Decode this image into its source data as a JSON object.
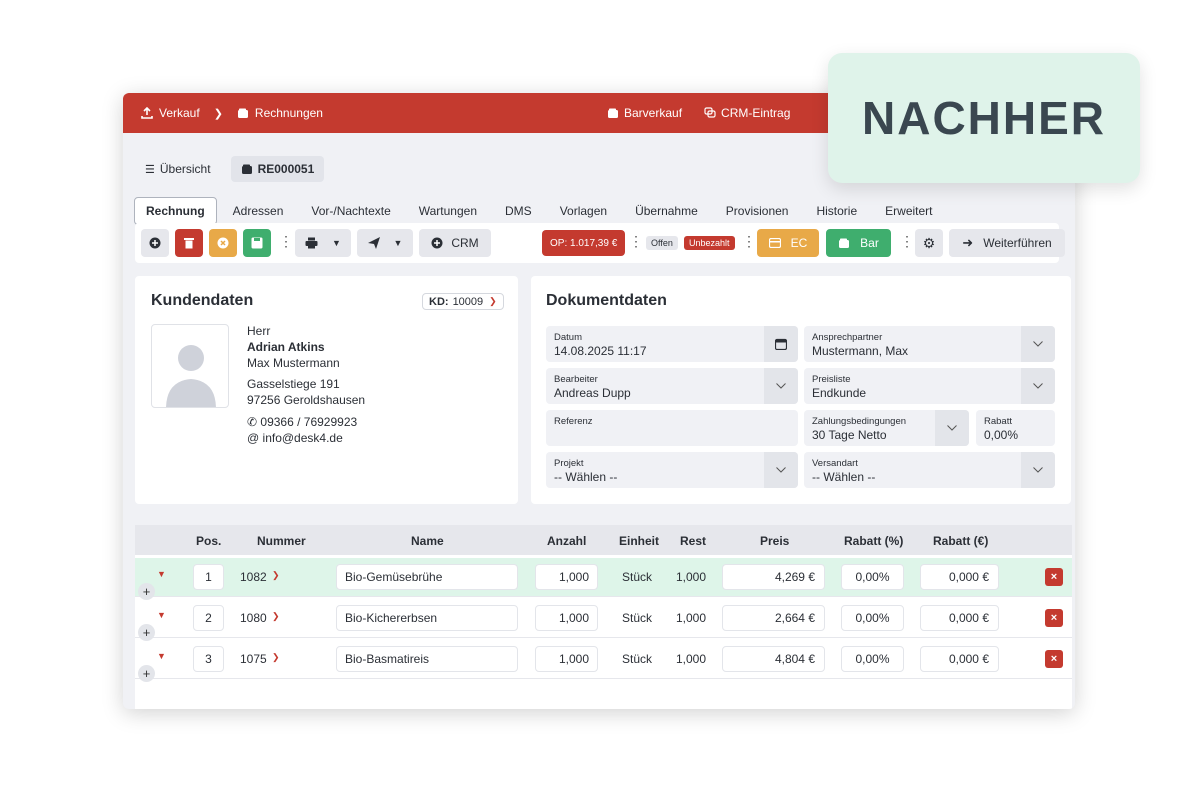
{
  "topbar": {
    "crumb1": "Verkauf",
    "crumb2": "Rechnungen",
    "barverkauf": "Barverkauf",
    "crm_eintrag": "CRM-Eintrag"
  },
  "subtabs": {
    "overview": "Übersicht",
    "document": "RE000051"
  },
  "tabs": [
    "Rechnung",
    "Adressen",
    "Vor-/Nachtexte",
    "Wartungen",
    "DMS",
    "Vorlagen",
    "Übernahme",
    "Provisionen",
    "Historie",
    "Erweitert"
  ],
  "toolbar": {
    "crm": "CRM",
    "op": "OP: 1.017,39 €",
    "offen": "Offen",
    "unbezahlt": "Unbezahlt",
    "ec": "EC",
    "bar": "Bar",
    "weiter": "Weiterführen"
  },
  "customer": {
    "title": "Kundendaten",
    "kd_label": "KD:",
    "kd_value": "10009",
    "salutation": "Herr",
    "name": "Adrian Atkins",
    "contact": "Max Mustermann",
    "street": "Gasselstiege 191",
    "city": "97256 Geroldshausen",
    "phone": "09366 / 76929923",
    "email": "info@desk4.de"
  },
  "document": {
    "title": "Dokumentdaten",
    "datum_label": "Datum",
    "datum": "14.08.2025 11:17",
    "ansprech_label": "Ansprechpartner",
    "ansprech": "Mustermann, Max",
    "bearbeiter_label": "Bearbeiter",
    "bearbeiter": "Andreas Dupp",
    "preisliste_label": "Preisliste",
    "preisliste": "Endkunde",
    "referenz_label": "Referenz",
    "zahlung_label": "Zahlungsbedingungen",
    "zahlung": "30 Tage Netto",
    "rabatt_label": "Rabatt",
    "rabatt": "0,00%",
    "projekt_label": "Projekt",
    "projekt": "-- Wählen --",
    "versand_label": "Versandart",
    "versand": "-- Wählen --"
  },
  "table": {
    "headers": {
      "pos": "Pos.",
      "nummer": "Nummer",
      "name": "Name",
      "anzahl": "Anzahl",
      "einheit": "Einheit",
      "rest": "Rest",
      "preis": "Preis",
      "rabatt_pct": "Rabatt (%)",
      "rabatt_eur": "Rabatt (€)"
    },
    "rows": [
      {
        "pos": "1",
        "nummer": "1082",
        "name": "Bio-Gemüsebrühe",
        "anzahl": "1,000",
        "einheit": "Stück",
        "rest": "1,000",
        "preis": "4,269 €",
        "rabatt_pct": "0,00%",
        "rabatt_eur": "0,000 €"
      },
      {
        "pos": "2",
        "nummer": "1080",
        "name": "Bio-Kichererbsen",
        "anzahl": "1,000",
        "einheit": "Stück",
        "rest": "1,000",
        "preis": "2,664 €",
        "rabatt_pct": "0,00%",
        "rabatt_eur": "0,000 €"
      },
      {
        "pos": "3",
        "nummer": "1075",
        "name": "Bio-Basmatireis",
        "anzahl": "1,000",
        "einheit": "Stück",
        "rest": "1,000",
        "preis": "4,804 €",
        "rabatt_pct": "0,00%",
        "rabatt_eur": "0,000 €"
      }
    ]
  },
  "overlay": {
    "label": "NACHHER"
  },
  "colors": {
    "brand_red": "#c43a2f",
    "orange": "#e8a948",
    "green": "#3fae6e",
    "highlight": "#def5e9"
  }
}
